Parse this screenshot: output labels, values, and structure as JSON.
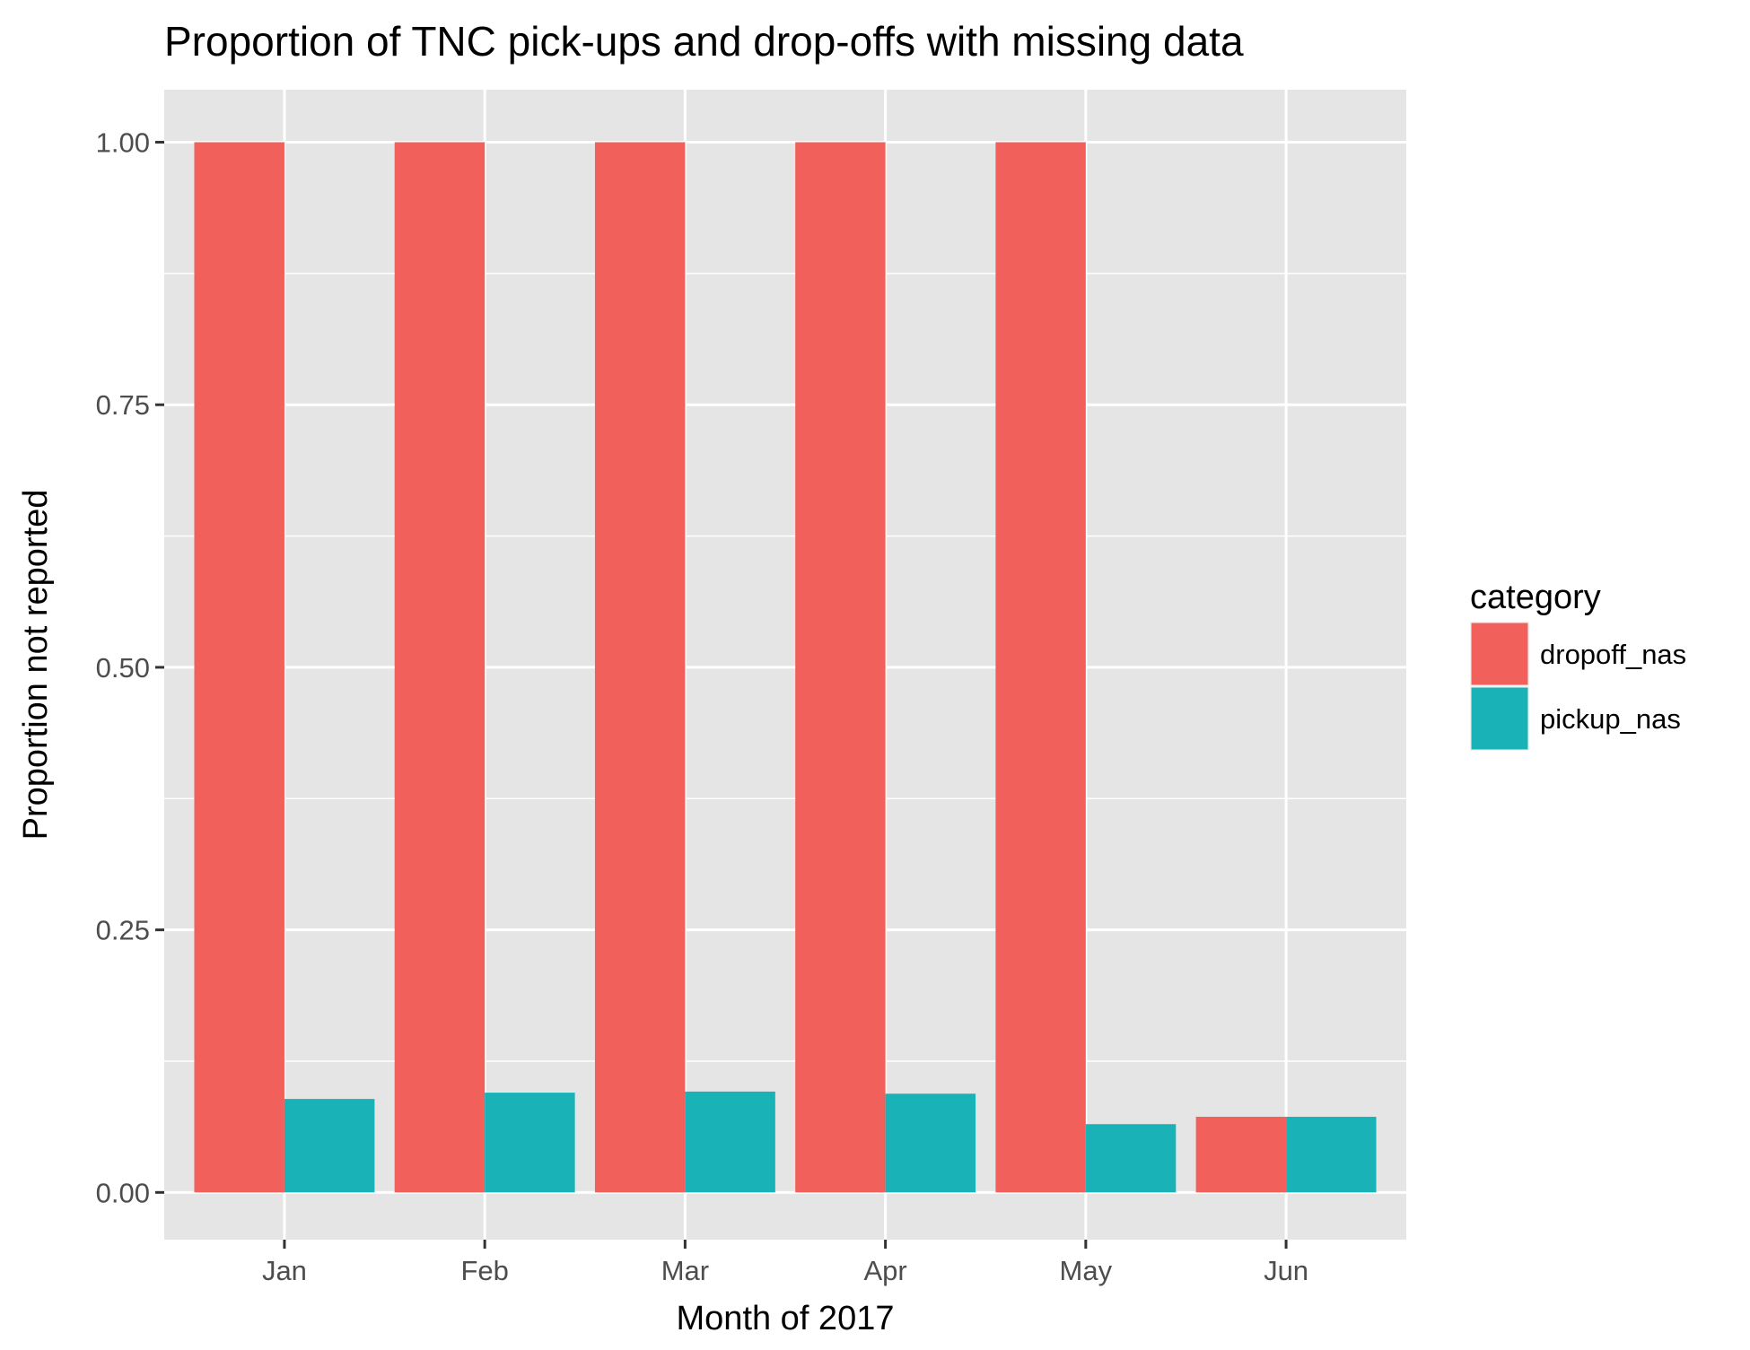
{
  "chart_data": {
    "type": "bar",
    "title": "Proportion of TNC pick-ups and drop-offs with missing data",
    "xlabel": "Month of 2017",
    "ylabel": "Proportion not reported",
    "categories": [
      "Jan",
      "Feb",
      "Mar",
      "Apr",
      "May",
      "Jun"
    ],
    "ylim": [
      -0.045,
      1.05
    ],
    "yticks": [
      0.0,
      0.25,
      0.5,
      0.75,
      1.0
    ],
    "ytick_labels": [
      "0.00",
      "0.25",
      "0.50",
      "0.75",
      "1.00"
    ],
    "grid": true,
    "legend": {
      "title": "category",
      "position": "right"
    },
    "series": [
      {
        "name": "dropoff_nas",
        "color": "#F2605C",
        "values": [
          1.0,
          1.0,
          1.0,
          1.0,
          1.0,
          0.072
        ]
      },
      {
        "name": "pickup_nas",
        "color": "#19B3B7",
        "values": [
          0.089,
          0.095,
          0.096,
          0.094,
          0.065,
          0.072
        ]
      }
    ],
    "panel_color": "#E5E5E5",
    "grid_color": "#FFFFFF"
  }
}
